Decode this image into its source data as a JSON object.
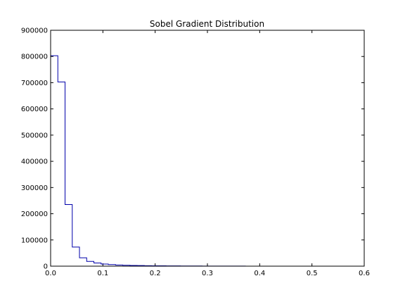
{
  "chart_data": {
    "type": "histogram-step",
    "title": "Sobel Gradient Distribution",
    "xlabel": "",
    "ylabel": "",
    "xlim": [
      0.0,
      0.6
    ],
    "ylim": [
      0,
      900000
    ],
    "x_ticks": [
      0.0,
      0.1,
      0.2,
      0.3,
      0.4,
      0.5,
      0.6
    ],
    "x_tick_labels": [
      "0.0",
      "0.1",
      "0.2",
      "0.3",
      "0.4",
      "0.5",
      "0.6"
    ],
    "y_ticks": [
      0,
      100000,
      200000,
      300000,
      400000,
      500000,
      600000,
      700000,
      800000,
      900000
    ],
    "y_tick_labels": [
      "0",
      "100000",
      "200000",
      "300000",
      "400000",
      "500000",
      "600000",
      "700000",
      "800000",
      "900000"
    ],
    "line_color": "#0000aa",
    "grid": false,
    "bin_edges": [
      0.0,
      0.0138,
      0.0276,
      0.0414,
      0.0552,
      0.069,
      0.0828,
      0.0966,
      0.1104,
      0.1242,
      0.138,
      0.1518,
      0.1656,
      0.1794,
      0.1932,
      0.207,
      0.2208,
      0.2346,
      0.2484,
      0.2622,
      0.276,
      0.2898,
      0.3036,
      0.3174,
      0.3312,
      0.345,
      0.3588,
      0.3726,
      0.3864,
      0.4002,
      0.414,
      0.4278,
      0.4416,
      0.4554,
      0.4692,
      0.483,
      0.4968,
      0.5106,
      0.5244,
      0.5382,
      0.552
    ],
    "counts": [
      803000,
      703000,
      235000,
      73000,
      32000,
      18000,
      12000,
      8000,
      6000,
      4500,
      3500,
      2800,
      2200,
      1800,
      1500,
      1200,
      1000,
      850,
      700,
      600,
      500,
      420,
      360,
      300,
      260,
      220,
      190,
      160,
      140,
      120,
      100,
      85,
      70,
      60,
      50,
      40,
      30,
      25,
      20,
      15
    ]
  }
}
